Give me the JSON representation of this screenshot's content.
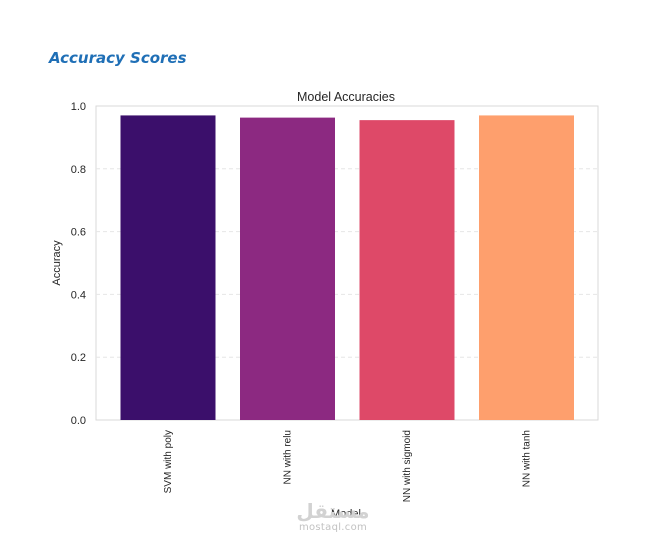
{
  "page": {
    "section_heading": "Accuracy Scores"
  },
  "chart_data": {
    "type": "bar",
    "title": "Model Accuracies",
    "xlabel": "Model",
    "ylabel": "Accuracy",
    "categories": [
      "SVM with poly",
      "NN with relu",
      "NN with sigmoid",
      "NN with tanh"
    ],
    "values": [
      0.97,
      0.963,
      0.955,
      0.97
    ],
    "colors": [
      "#3b0f6b",
      "#8c2981",
      "#de4968",
      "#fe9f6d"
    ],
    "ylim": [
      0,
      1.0
    ],
    "yticks": [
      "0.0",
      "0.2",
      "0.4",
      "0.6",
      "0.8",
      "1.0"
    ],
    "grid": true
  },
  "watermark": {
    "logo_text": "مستقل",
    "site": "mostaql.com"
  }
}
